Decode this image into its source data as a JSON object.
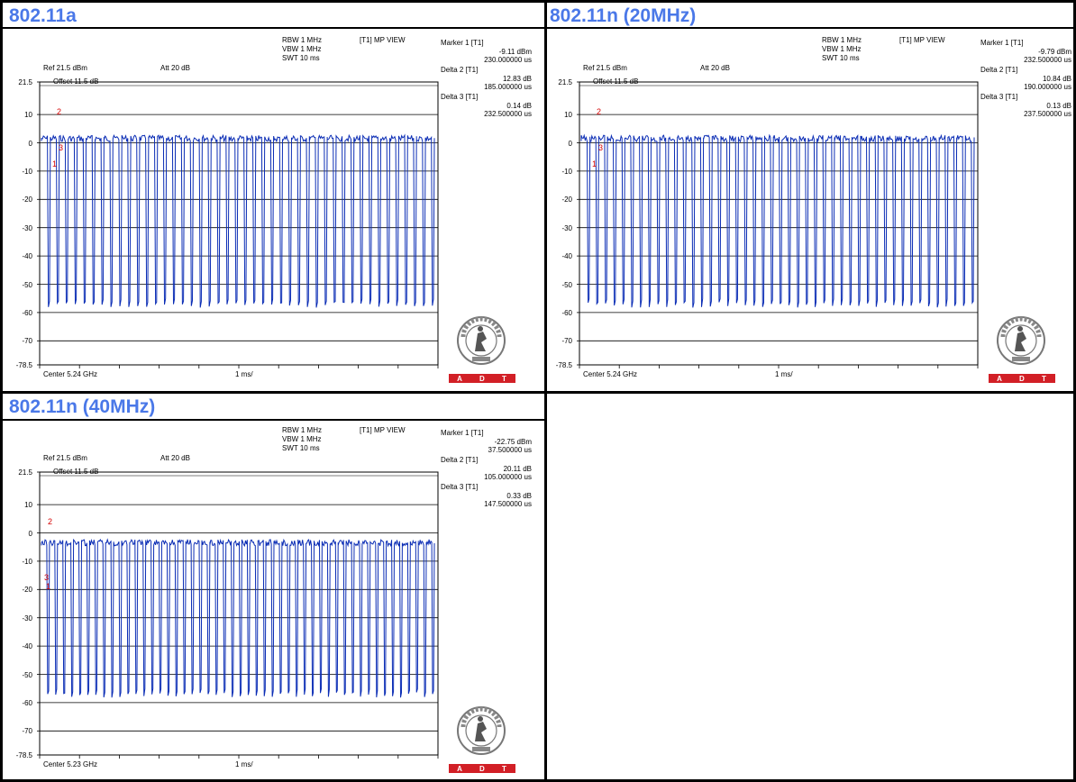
{
  "panels": [
    {
      "title": "802.11a",
      "settings": {
        "rbw": "RBW 1 MHz",
        "vbw": "VBW 1 MHz",
        "swt": "SWT 10 ms",
        "view": "[T1] MP VIEW",
        "ref": "Ref 21.5 dBm",
        "att": "Att  20 dB",
        "offset": "Offset 11.5 dB",
        "center": "Center 5.24 GHz",
        "span": "1 ms/"
      },
      "markers": {
        "m1_label": "Marker 1 [T1]",
        "m1_v1": "-9.11 dBm",
        "m1_v2": "230.000000 us",
        "d2_label": "Delta 2 [T1]",
        "d2_v1": "12.83 dB",
        "d2_v2": "185.000000 us",
        "d3_label": "Delta 3 [T1]",
        "d3_v1": "0.14 dB",
        "d3_v2": "232.500000 us"
      },
      "chart_marks": {
        "m1": "1",
        "m2": "2",
        "m3": "3"
      }
    },
    {
      "title": "802.11n (20MHz)",
      "settings": {
        "rbw": "RBW 1 MHz",
        "vbw": "VBW 1 MHz",
        "swt": "SWT 10 ms",
        "view": "[T1] MP VIEW",
        "ref": "Ref 21.5 dBm",
        "att": "Att  20 dB",
        "offset": "Offset 11.5 dB",
        "center": "Center 5.24 GHz",
        "span": "1 ms/"
      },
      "markers": {
        "m1_label": "Marker 1 [T1]",
        "m1_v1": "-9.79 dBm",
        "m1_v2": "232.500000 us",
        "d2_label": "Delta 2 [T1]",
        "d2_v1": "10.84 dB",
        "d2_v2": "190.000000 us",
        "d3_label": "Delta 3 [T1]",
        "d3_v1": "0.13 dB",
        "d3_v2": "237.500000 us"
      },
      "chart_marks": {
        "m1": "1",
        "m2": "2",
        "m3": "3"
      }
    },
    {
      "title": "802.11n (40MHz)",
      "settings": {
        "rbw": "RBW 1 MHz",
        "vbw": "VBW 1 MHz",
        "swt": "SWT 10 ms",
        "view": "[T1] MP VIEW",
        "ref": "Ref 21.5 dBm",
        "att": "Att  20 dB",
        "offset": "Offset 11.5 dB",
        "center": "Center 5.23 GHz",
        "span": "1 ms/"
      },
      "markers": {
        "m1_label": "Marker 1 [T1]",
        "m1_v1": "-22.75 dBm",
        "m1_v2": "37.500000 us",
        "d2_label": "Delta 2 [T1]",
        "d2_v1": "20.11 dB",
        "d2_v2": "105.000000 us",
        "d3_label": "Delta 3 [T1]",
        "d3_v1": "0.33 dB",
        "d3_v2": "147.500000 us"
      },
      "chart_marks": {
        "m1": "1",
        "m2": "2",
        "m3": "3"
      }
    }
  ],
  "y_ticks": [
    "21.5",
    "10",
    "0",
    "-10",
    "-20",
    "-30",
    "-40",
    "-50",
    "-60",
    "-70",
    "-78.5"
  ],
  "logo": {
    "ring_text": "BUREAU VERITAS",
    "year": "1828",
    "badge": [
      "A",
      "D",
      "T"
    ]
  },
  "colors": {
    "title": "#4a78e8",
    "trace": "#0b2db5",
    "marker": "#d40000",
    "badge": "#d21f26"
  },
  "trace_shape": [
    {
      "panel": 0,
      "bursts": 44,
      "top_db": 2.5,
      "bottom_db": -57
    },
    {
      "panel": 1,
      "bursts": 45,
      "top_db": 2.5,
      "bottom_db": -57
    },
    {
      "panel": 2,
      "bursts": 49,
      "top_db": -2.5,
      "bottom_db": -57
    }
  ]
}
